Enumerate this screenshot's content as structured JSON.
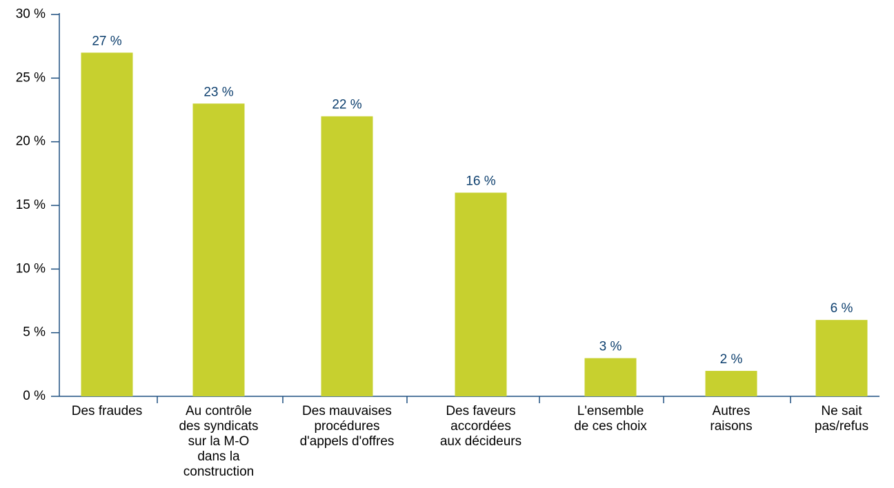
{
  "chart_data": {
    "type": "bar",
    "categories": [
      "Des fraudes",
      "Au contrôle\ndes syndicats\nsur la M-O\ndans la\nconstruction",
      "Des mauvaises\nprocédures\nd'appels d'offres",
      "Des faveurs\naccordées\naux décideurs",
      "L'ensemble\nde ces choix",
      "Autres\nraisons",
      "Ne sait\npas/refus"
    ],
    "values": [
      27,
      23,
      22,
      16,
      3,
      2,
      6
    ],
    "value_labels": [
      "27 %",
      "23 %",
      "22 %",
      "16 %",
      "3 %",
      "2 %",
      "6 %"
    ],
    "color": "#c7d02f",
    "ylim": [
      0,
      30
    ],
    "yticks": [
      {
        "value": 0,
        "label": "0 %"
      },
      {
        "value": 5,
        "label": "5 %"
      },
      {
        "value": 10,
        "label": "10 %"
      },
      {
        "value": 15,
        "label": "15 %"
      },
      {
        "value": 20,
        "label": "20 %"
      },
      {
        "value": 25,
        "label": "25 %"
      },
      {
        "value": 30,
        "label": "30 %"
      }
    ],
    "grid": false
  }
}
